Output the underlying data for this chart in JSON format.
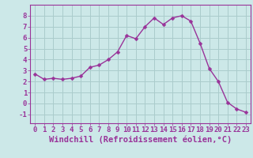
{
  "x": [
    0,
    1,
    2,
    3,
    4,
    5,
    6,
    7,
    8,
    9,
    10,
    11,
    12,
    13,
    14,
    15,
    16,
    17,
    18,
    19,
    20,
    21,
    22,
    23
  ],
  "y": [
    2.7,
    2.2,
    2.3,
    2.2,
    2.3,
    2.5,
    3.3,
    3.5,
    4.0,
    4.7,
    6.2,
    5.9,
    7.0,
    7.8,
    7.2,
    7.8,
    8.0,
    7.5,
    5.5,
    3.2,
    2.0,
    0.1,
    -0.5,
    -0.8
  ],
  "line_color": "#993399",
  "marker": "D",
  "marker_size": 2.5,
  "bg_color": "#cce8e8",
  "grid_color": "#aacccc",
  "xlabel": "Windchill (Refroidissement éolien,°C)",
  "xlabel_color": "#993399",
  "ylabel_ticks": [
    -1,
    0,
    1,
    2,
    3,
    4,
    5,
    6,
    7,
    8
  ],
  "xtick_labels": [
    "0",
    "1",
    "2",
    "3",
    "4",
    "5",
    "6",
    "7",
    "8",
    "9",
    "10",
    "11",
    "12",
    "13",
    "14",
    "15",
    "16",
    "17",
    "18",
    "19",
    "20",
    "21",
    "22",
    "23"
  ],
  "ylim": [
    -1.8,
    9.0
  ],
  "xlim": [
    -0.5,
    23.5
  ],
  "tick_color": "#993399",
  "tick_fontsize": 6.5,
  "xlabel_fontsize": 7.5,
  "spine_color": "#993399"
}
